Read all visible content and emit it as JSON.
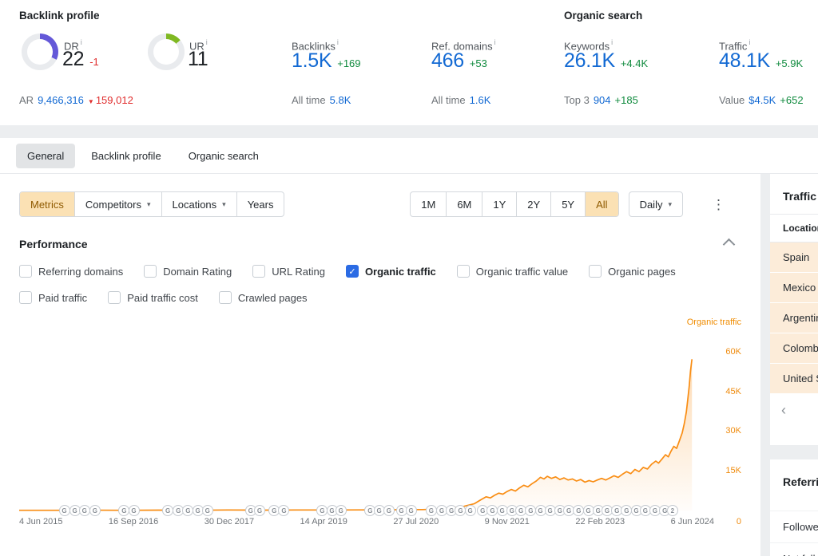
{
  "colors": {
    "accent_orange": "#f98d13",
    "link_blue": "#1269d3",
    "positive_green": "#0f8a3d",
    "negative_red": "#e02d2d",
    "dr_purple": "#6458d8",
    "ur_green": "#7fb822",
    "selected_bg": "#fbe1b4",
    "row_peach": "#fcecd9"
  },
  "icons": {
    "info": "i",
    "caret_down": "▾",
    "dots_menu": "⋮",
    "chevron_left": "‹",
    "down_triangle": "▼",
    "check": "✓"
  },
  "header": {
    "backlink": {
      "title": "Backlink profile",
      "dr_label": "DR",
      "dr_value": "22",
      "dr_delta": "-1",
      "ar_label": "AR",
      "ar_value": "9,466,316",
      "ar_delta": "159,012",
      "ur_label": "UR",
      "ur_value": "11",
      "backlinks_label": "Backlinks",
      "backlinks_value": "1.5K",
      "backlinks_delta": "+169",
      "backlinks_alltime_label": "All time",
      "backlinks_alltime_value": "5.8K",
      "refdomains_label": "Ref. domains",
      "refdomains_value": "466",
      "refdomains_delta": "+53",
      "refdomains_alltime_label": "All time",
      "refdomains_alltime_value": "1.6K"
    },
    "organic": {
      "title": "Organic search",
      "keywords_label": "Keywords",
      "keywords_value": "26.1K",
      "keywords_delta": "+4.4K",
      "keywords_sub_label": "Top 3",
      "keywords_sub_value": "904",
      "keywords_sub_delta": "+185",
      "traffic_label": "Traffic",
      "traffic_value": "48.1K",
      "traffic_delta": "+5.9K",
      "traffic_sub_label": "Value",
      "traffic_sub_value": "$4.5K",
      "traffic_sub_delta": "+652"
    }
  },
  "tabs": [
    {
      "label": "General",
      "active": true
    },
    {
      "label": "Backlink profile",
      "active": false
    },
    {
      "label": "Organic search",
      "active": false
    }
  ],
  "toolbar": {
    "filters": [
      {
        "label": "Metrics",
        "active": true
      },
      {
        "label": "Competitors",
        "caret": true
      },
      {
        "label": "Locations",
        "caret": true
      },
      {
        "label": "Years"
      }
    ],
    "ranges": [
      {
        "label": "1M"
      },
      {
        "label": "6M"
      },
      {
        "label": "1Y"
      },
      {
        "label": "2Y"
      },
      {
        "label": "5Y"
      },
      {
        "label": "All",
        "active": true
      }
    ],
    "granularity": "Daily"
  },
  "performance": {
    "title": "Performance",
    "legend": "Organic traffic",
    "metrics": [
      {
        "label": "Referring domains",
        "checked": false
      },
      {
        "label": "Domain Rating",
        "checked": false
      },
      {
        "label": "URL Rating",
        "checked": false
      },
      {
        "label": "Organic traffic",
        "checked": true
      },
      {
        "label": "Organic traffic value",
        "checked": false
      },
      {
        "label": "Organic pages",
        "checked": false
      },
      {
        "label": "Paid traffic",
        "checked": false
      },
      {
        "label": "Paid traffic cost",
        "checked": false
      },
      {
        "label": "Crawled pages",
        "checked": false
      }
    ]
  },
  "chart_data": {
    "type": "line",
    "title": "Organic traffic",
    "ylim": [
      0,
      60000
    ],
    "legend_position": "top-right",
    "grid": false,
    "yticks": [
      {
        "label": "60K",
        "v": 60
      },
      {
        "label": "45K",
        "v": 45
      },
      {
        "label": "30K",
        "v": 30
      },
      {
        "label": "15K",
        "v": 15
      },
      {
        "label": "0",
        "v": 0
      }
    ],
    "xticks": [
      "4 Jun 2015",
      "16 Sep 2016",
      "30 Dec 2017",
      "14 Apr 2019",
      "27 Jul 2020",
      "9 Nov 2021",
      "22 Feb 2023",
      "6 Jun 2024"
    ],
    "series": [
      {
        "name": "Organic traffic",
        "color": "#f98d13",
        "units": "thousands",
        "points": [
          [
            0.0,
            0.1
          ],
          [
            0.05,
            0.1
          ],
          [
            0.1,
            0.15
          ],
          [
            0.15,
            0.1
          ],
          [
            0.2,
            0.15
          ],
          [
            0.25,
            0.1
          ],
          [
            0.3,
            0.2
          ],
          [
            0.35,
            0.15
          ],
          [
            0.4,
            0.2
          ],
          [
            0.45,
            0.2
          ],
          [
            0.5,
            0.25
          ],
          [
            0.55,
            0.3
          ],
          [
            0.58,
            0.35
          ],
          [
            0.6,
            0.5
          ],
          [
            0.62,
            0.9
          ],
          [
            0.64,
            1.6
          ],
          [
            0.655,
            2.6
          ],
          [
            0.665,
            4.2
          ],
          [
            0.672,
            5.2
          ],
          [
            0.678,
            4.8
          ],
          [
            0.684,
            5.8
          ],
          [
            0.69,
            6.6
          ],
          [
            0.696,
            6.2
          ],
          [
            0.702,
            7.2
          ],
          [
            0.708,
            8.0
          ],
          [
            0.714,
            7.4
          ],
          [
            0.72,
            8.6
          ],
          [
            0.726,
            9.6
          ],
          [
            0.732,
            9.0
          ],
          [
            0.738,
            10.2
          ],
          [
            0.744,
            11.2
          ],
          [
            0.75,
            12.6
          ],
          [
            0.755,
            12.0
          ],
          [
            0.76,
            13.0
          ],
          [
            0.766,
            12.2
          ],
          [
            0.772,
            12.8
          ],
          [
            0.778,
            11.8
          ],
          [
            0.784,
            12.4
          ],
          [
            0.79,
            11.6
          ],
          [
            0.796,
            12.0
          ],
          [
            0.802,
            11.2
          ],
          [
            0.808,
            11.8
          ],
          [
            0.814,
            10.8
          ],
          [
            0.82,
            11.4
          ],
          [
            0.826,
            10.9
          ],
          [
            0.832,
            11.6
          ],
          [
            0.838,
            12.2
          ],
          [
            0.844,
            11.6
          ],
          [
            0.85,
            12.4
          ],
          [
            0.856,
            13.2
          ],
          [
            0.862,
            12.6
          ],
          [
            0.868,
            13.8
          ],
          [
            0.874,
            14.8
          ],
          [
            0.88,
            14.0
          ],
          [
            0.886,
            15.6
          ],
          [
            0.892,
            14.8
          ],
          [
            0.898,
            16.4
          ],
          [
            0.904,
            15.8
          ],
          [
            0.91,
            17.6
          ],
          [
            0.916,
            18.8
          ],
          [
            0.92,
            18.0
          ],
          [
            0.925,
            19.6
          ],
          [
            0.93,
            21.2
          ],
          [
            0.934,
            20.4
          ],
          [
            0.938,
            22.6
          ],
          [
            0.942,
            24.4
          ],
          [
            0.946,
            23.6
          ],
          [
            0.95,
            26.5
          ],
          [
            0.954,
            29.5
          ],
          [
            0.957,
            33.0
          ],
          [
            0.96,
            37.5
          ],
          [
            0.962,
            42.0
          ],
          [
            0.964,
            47.0
          ],
          [
            0.966,
            53.0
          ],
          [
            0.968,
            57.5
          ]
        ]
      }
    ],
    "markers": {
      "label": "G",
      "last_label": "2",
      "positions": [
        0.065,
        0.08,
        0.094,
        0.109,
        0.151,
        0.165,
        0.214,
        0.229,
        0.243,
        0.257,
        0.271,
        0.333,
        0.346,
        0.367,
        0.381,
        0.436,
        0.45,
        0.463,
        0.505,
        0.518,
        0.532,
        0.55,
        0.564,
        0.593,
        0.608,
        0.622,
        0.635,
        0.649,
        0.667,
        0.681,
        0.695,
        0.709,
        0.722,
        0.736,
        0.75,
        0.764,
        0.778,
        0.791,
        0.805,
        0.819,
        0.833,
        0.846,
        0.86,
        0.874,
        0.888,
        0.901,
        0.915,
        0.929,
        0.94
      ]
    }
  },
  "sidebar": {
    "traffic_title": "Traffic",
    "location_header": "Location",
    "locations": [
      {
        "name": "Spain"
      },
      {
        "name": "Mexico"
      },
      {
        "name": "Argentina"
      },
      {
        "name": "Colombia"
      },
      {
        "name": "United States"
      }
    ],
    "referring_title": "Referring domains",
    "referring_rows": [
      {
        "label": "Followed"
      },
      {
        "label": "Not followed"
      }
    ]
  }
}
